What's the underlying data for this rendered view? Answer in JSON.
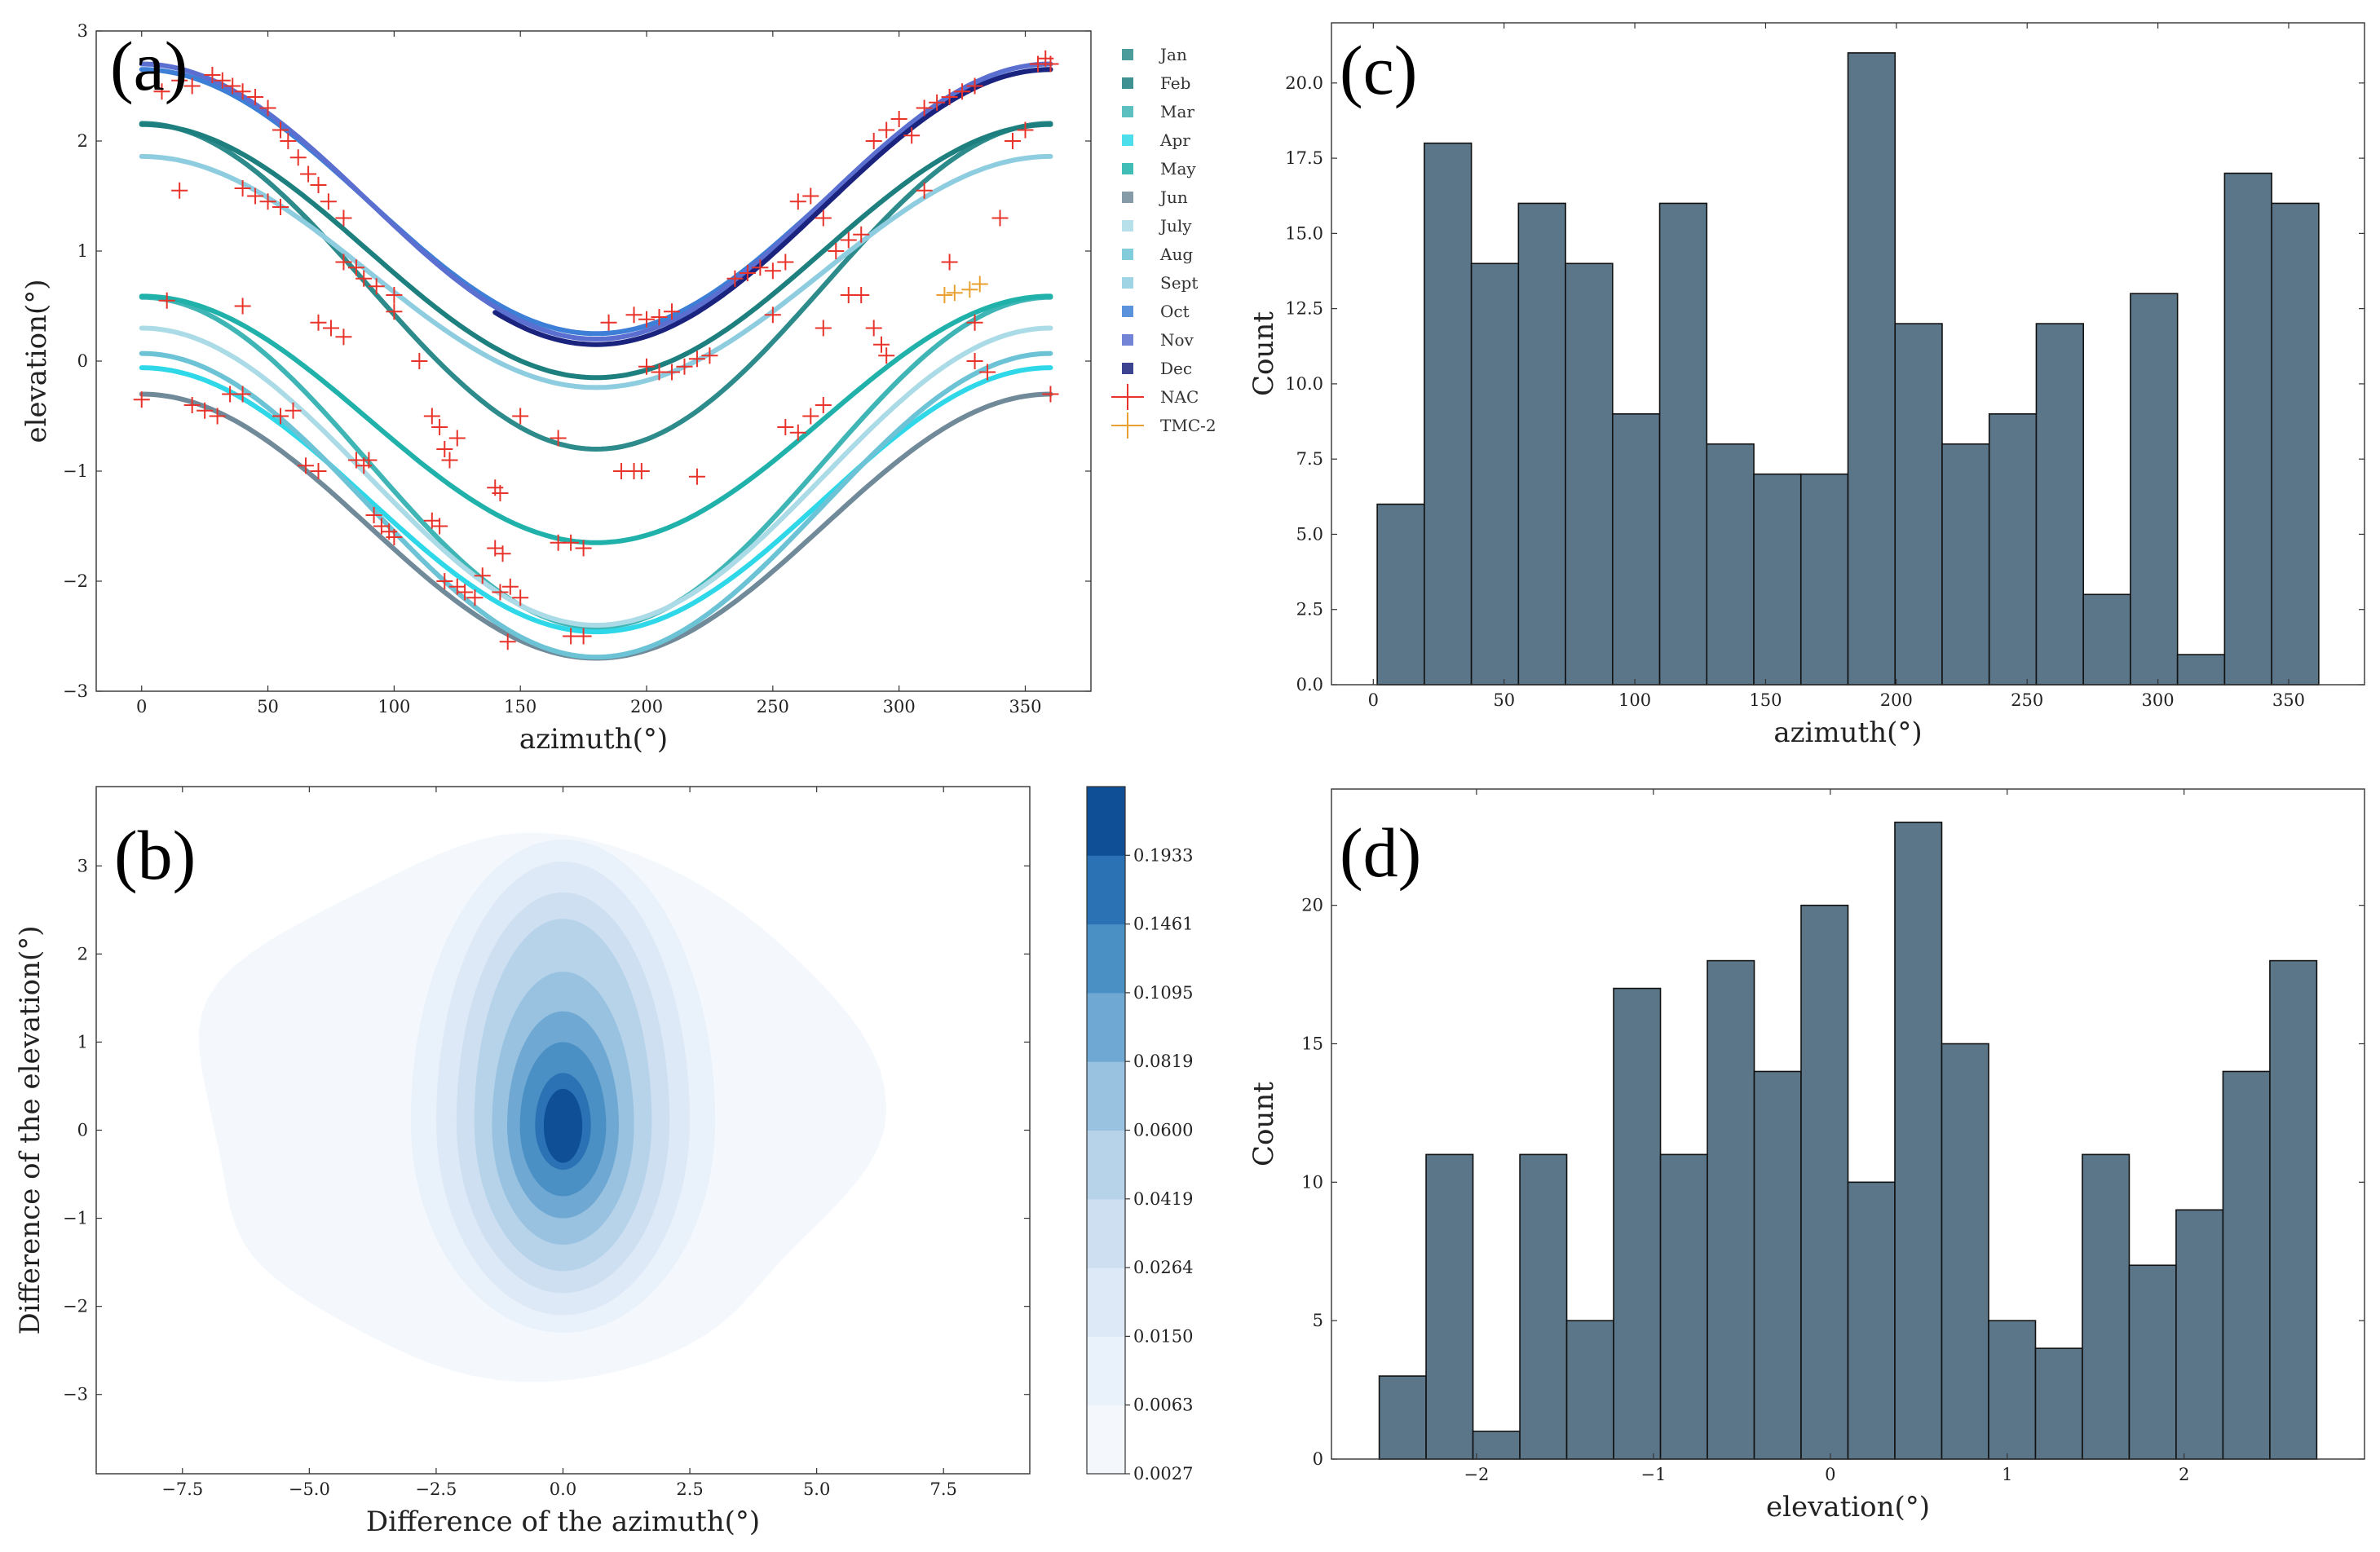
{
  "figure": {
    "panels": [
      "(a)",
      "(b)",
      "(c)",
      "(d)"
    ]
  },
  "chart_data": [
    {
      "id": "a",
      "type": "scatter",
      "panel_label": "(a)",
      "xlabel": "azimuth(°)",
      "ylabel": "elevation(°)",
      "xlim": [
        -18,
        376
      ],
      "ylim": [
        -3,
        3
      ],
      "xticks": [
        0,
        50,
        100,
        150,
        200,
        250,
        300,
        350
      ],
      "yticks": [
        -3,
        -2,
        -1,
        0,
        1,
        2,
        3
      ],
      "ytick_labels": [
        "−3",
        "−2",
        "−1",
        "0",
        "1",
        "2",
        "3"
      ],
      "curves": [
        {
          "name": "Jan",
          "color": "#2e8b8b",
          "model": "A*cos(az)+C",
          "A": 1.48,
          "C": 0.68,
          "x_range": [
            0,
            360
          ]
        },
        {
          "name": "Feb",
          "color": "#1e7f7f",
          "model": "A*cos(az)+C",
          "A": 1.15,
          "C": 1.0,
          "x_range": [
            0,
            360
          ]
        },
        {
          "name": "Mar",
          "color": "#3fb5b5",
          "model": "A*cos(az)+C",
          "A": 1.5,
          "C": -0.92,
          "x_range": [
            0,
            360
          ]
        },
        {
          "name": "Apr",
          "color": "#2ed8e8",
          "model": "A*cos(az)+C",
          "A": 1.2,
          "C": -1.26,
          "x_range": [
            0,
            360
          ]
        },
        {
          "name": "May",
          "color": "#20b2aa",
          "model": "A*cos(az)+C",
          "A": 1.12,
          "C": -0.53,
          "x_range": [
            0,
            360
          ]
        },
        {
          "name": "Jun",
          "color": "#708a99",
          "model": "A*cos(az)+C",
          "A": 1.2,
          "C": -1.5,
          "x_range": [
            0,
            360
          ]
        },
        {
          "name": "July",
          "color": "#aadbe6",
          "model": "A*cos(az)+C",
          "A": 1.35,
          "C": -1.05,
          "x_range": [
            0,
            360
          ]
        },
        {
          "name": "Aug",
          "color": "#6cc3d5",
          "model": "A*cos(az)+C",
          "A": 1.38,
          "C": -1.31,
          "x_range": [
            0,
            360
          ]
        },
        {
          "name": "Sept",
          "color": "#8ecde0",
          "model": "A*cos(az)+C",
          "A": 1.05,
          "C": 0.81,
          "x_range": [
            0,
            360
          ]
        },
        {
          "name": "Oct",
          "color": "#3d7fd6",
          "model": "A*cos(az)+C",
          "A": 1.2,
          "C": 1.45,
          "x_range": [
            0,
            360
          ]
        },
        {
          "name": "Nov",
          "color": "#5a6fd0",
          "model": "A*cos(az)+C",
          "A": 1.25,
          "C": 1.45,
          "x_range": [
            0,
            360
          ]
        },
        {
          "name": "Dec",
          "color": "#1a237e",
          "model": "A*cos(az)+C",
          "A": 1.25,
          "C": 1.4,
          "x_range": [
            140,
            360
          ]
        }
      ],
      "legend": [
        "Jan",
        "Feb",
        "Mar",
        "Apr",
        "May",
        "Jun",
        "July",
        "Aug",
        "Sept",
        "Oct",
        "Nov",
        "Dec",
        "NAC",
        "TMC-2"
      ],
      "series": [
        {
          "name": "NAC",
          "marker": "+",
          "color": "#e8332a",
          "points": [
            [
              0,
              -0.35
            ],
            [
              8,
              2.45
            ],
            [
              15,
              2.55
            ],
            [
              20,
              2.5
            ],
            [
              28,
              2.6
            ],
            [
              32,
              2.55
            ],
            [
              36,
              2.5
            ],
            [
              40,
              2.45
            ],
            [
              45,
              2.4
            ],
            [
              50,
              2.3
            ],
            [
              55,
              2.1
            ],
            [
              58,
              2.0
            ],
            [
              62,
              1.85
            ],
            [
              66,
              1.7
            ],
            [
              70,
              1.6
            ],
            [
              74,
              1.45
            ],
            [
              80,
              1.3
            ],
            [
              15,
              1.55
            ],
            [
              40,
              1.57
            ],
            [
              45,
              1.5
            ],
            [
              50,
              1.45
            ],
            [
              55,
              1.4
            ],
            [
              10,
              0.55
            ],
            [
              40,
              0.5
            ],
            [
              70,
              0.35
            ],
            [
              75,
              0.3
            ],
            [
              80,
              0.22
            ],
            [
              80,
              0.9
            ],
            [
              85,
              0.85
            ],
            [
              88,
              0.75
            ],
            [
              93,
              0.68
            ],
            [
              100,
              0.6
            ],
            [
              100,
              0.45
            ],
            [
              20,
              -0.4
            ],
            [
              25,
              -0.45
            ],
            [
              30,
              -0.5
            ],
            [
              35,
              -0.3
            ],
            [
              40,
              -0.3
            ],
            [
              55,
              -0.5
            ],
            [
              60,
              -0.45
            ],
            [
              65,
              -0.95
            ],
            [
              70,
              -1.0
            ],
            [
              85,
              -0.9
            ],
            [
              88,
              -0.95
            ],
            [
              90,
              -0.9
            ],
            [
              92,
              -1.4
            ],
            [
              95,
              -1.5
            ],
            [
              98,
              -1.55
            ],
            [
              100,
              -1.6
            ],
            [
              110,
              0.0
            ],
            [
              115,
              -0.5
            ],
            [
              118,
              -0.6
            ],
            [
              120,
              -0.8
            ],
            [
              122,
              -0.9
            ],
            [
              125,
              -0.7
            ],
            [
              115,
              -1.45
            ],
            [
              118,
              -1.5
            ],
            [
              120,
              -2.0
            ],
            [
              125,
              -2.05
            ],
            [
              128,
              -2.1
            ],
            [
              132,
              -2.15
            ],
            [
              135,
              -1.95
            ],
            [
              140,
              -1.15
            ],
            [
              142,
              -1.2
            ],
            [
              140,
              -1.7
            ],
            [
              143,
              -1.75
            ],
            [
              142,
              -2.1
            ],
            [
              146,
              -2.05
            ],
            [
              150,
              -2.15
            ],
            [
              145,
              -2.55
            ],
            [
              150,
              -0.5
            ],
            [
              165,
              -0.7
            ],
            [
              165,
              -1.65
            ],
            [
              170,
              -1.65
            ],
            [
              175,
              -1.7
            ],
            [
              170,
              -2.5
            ],
            [
              175,
              -2.5
            ],
            [
              185,
              0.35
            ],
            [
              190,
              -1.0
            ],
            [
              195,
              -1.0
            ],
            [
              198,
              -1.0
            ],
            [
              195,
              0.42
            ],
            [
              200,
              0.38
            ],
            [
              205,
              0.4
            ],
            [
              210,
              0.45
            ],
            [
              200,
              -0.05
            ],
            [
              205,
              -0.1
            ],
            [
              210,
              -0.1
            ],
            [
              215,
              -0.05
            ],
            [
              220,
              0.02
            ],
            [
              225,
              0.05
            ],
            [
              220,
              -1.05
            ],
            [
              235,
              0.75
            ],
            [
              240,
              0.8
            ],
            [
              245,
              0.85
            ],
            [
              250,
              0.82
            ],
            [
              255,
              0.9
            ],
            [
              250,
              0.42
            ],
            [
              255,
              -0.6
            ],
            [
              260,
              -0.65
            ],
            [
              265,
              -0.5
            ],
            [
              270,
              -0.4
            ],
            [
              270,
              0.3
            ],
            [
              260,
              1.45
            ],
            [
              265,
              1.5
            ],
            [
              270,
              1.3
            ],
            [
              275,
              1.0
            ],
            [
              280,
              1.1
            ],
            [
              285,
              1.15
            ],
            [
              280,
              0.6
            ],
            [
              285,
              0.6
            ],
            [
              290,
              0.3
            ],
            [
              293,
              0.15
            ],
            [
              295,
              0.05
            ],
            [
              290,
              2.0
            ],
            [
              295,
              2.1
            ],
            [
              300,
              2.2
            ],
            [
              305,
              2.05
            ],
            [
              310,
              2.3
            ],
            [
              315,
              2.35
            ],
            [
              320,
              2.4
            ],
            [
              325,
              2.45
            ],
            [
              330,
              2.5
            ],
            [
              310,
              1.55
            ],
            [
              320,
              0.9
            ],
            [
              330,
              0.35
            ],
            [
              330,
              0.0
            ],
            [
              335,
              -0.1
            ],
            [
              340,
              1.3
            ],
            [
              345,
              2.0
            ],
            [
              350,
              2.1
            ],
            [
              355,
              2.7
            ],
            [
              358,
              2.75
            ],
            [
              360,
              2.7
            ],
            [
              360,
              -0.3
            ]
          ]
        },
        {
          "name": "TMC-2",
          "marker": "+",
          "color": "#e8a030",
          "points": [
            [
              318,
              0.6
            ],
            [
              322,
              0.62
            ],
            [
              328,
              0.65
            ],
            [
              332,
              0.7
            ]
          ]
        }
      ]
    },
    {
      "id": "b",
      "type": "heatmap",
      "subtype": "kde-contour",
      "panel_label": "(b)",
      "xlabel": "Difference of the azimuth(°)",
      "ylabel": "Difference of the elevation(°)",
      "xlim": [
        -9.2,
        9.2
      ],
      "ylim": [
        -3.9,
        3.9
      ],
      "xticks": [
        -7.5,
        -5.0,
        -2.5,
        0.0,
        2.5,
        5.0,
        7.5
      ],
      "xtick_labels": [
        "−7.5",
        "−5.0",
        "−2.5",
        "0.0",
        "2.5",
        "5.0",
        "7.5"
      ],
      "yticks": [
        -3,
        -2,
        -1,
        0,
        1,
        2,
        3
      ],
      "ytick_labels": [
        "−3",
        "−2",
        "−1",
        "0",
        "1",
        "2",
        "3"
      ],
      "colorbar_levels": [
        0.0027,
        0.0063,
        0.015,
        0.0264,
        0.0419,
        0.06,
        0.0819,
        0.1095,
        0.1461,
        0.1933
      ],
      "colorbar_labels": [
        "0.0027",
        "0.0063",
        "0.0150",
        "0.0264",
        "0.0419",
        "0.0600",
        "0.0819",
        "0.1095",
        "0.1461",
        "0.1933"
      ],
      "colorbar_colors": [
        "#f4f8fd",
        "#e9f1fa",
        "#dde9f6",
        "#cddff1",
        "#b7d3ea",
        "#98c2e0",
        "#6fa9d3",
        "#4b90c5",
        "#2a72b3",
        "#0f4f96"
      ],
      "contours": [
        {
          "level": 0.0027,
          "cx": -0.6,
          "cy": 0.0,
          "rx": 6.6,
          "ry_up": 3.25,
          "ry_down": 2.75
        },
        {
          "level": 0.0063,
          "cx": 0.0,
          "cy": 0.1,
          "rx": 3.0,
          "ry_up": 3.2,
          "ry_down": 2.4
        },
        {
          "level": 0.015,
          "cx": 0.0,
          "cy": 0.1,
          "rx": 2.5,
          "ry_up": 2.95,
          "ry_down": 2.2
        },
        {
          "level": 0.0264,
          "cx": 0.0,
          "cy": 0.1,
          "rx": 2.1,
          "ry_up": 2.6,
          "ry_down": 1.95
        },
        {
          "level": 0.0419,
          "cx": 0.0,
          "cy": 0.1,
          "rx": 1.75,
          "ry_up": 2.3,
          "ry_down": 1.7
        },
        {
          "level": 0.06,
          "cx": 0.0,
          "cy": 0.05,
          "rx": 1.4,
          "ry_up": 1.75,
          "ry_down": 1.35
        },
        {
          "level": 0.0819,
          "cx": 0.0,
          "cy": 0.05,
          "rx": 1.1,
          "ry_up": 1.3,
          "ry_down": 1.05
        },
        {
          "level": 0.1095,
          "cx": 0.0,
          "cy": 0.05,
          "rx": 0.85,
          "ry_up": 0.95,
          "ry_down": 0.8
        },
        {
          "level": 0.1461,
          "cx": 0.0,
          "cy": 0.05,
          "rx": 0.55,
          "ry_up": 0.6,
          "ry_down": 0.5
        }
      ]
    },
    {
      "id": "c",
      "type": "bar",
      "subtype": "histogram",
      "panel_label": "(c)",
      "xlabel": "azimuth(°)",
      "ylabel": "Count",
      "bar_color": "#5b7689",
      "bin_edges": [
        1.5,
        19.5,
        37.5,
        55.5,
        73.5,
        91.5,
        109.5,
        127.5,
        145.5,
        163.5,
        181.5,
        199.5,
        217.5,
        235.5,
        253.5,
        271.5,
        289.5,
        307.5,
        325.5,
        343.5,
        361.5
      ],
      "values": [
        6,
        18,
        14,
        16,
        14,
        9,
        16,
        8,
        7,
        7,
        21,
        12,
        8,
        9,
        12,
        3,
        13,
        1,
        17,
        16
      ],
      "xlim": [
        -16,
        379
      ],
      "ylim": [
        0,
        22
      ],
      "xticks": [
        0,
        50,
        100,
        150,
        200,
        250,
        300,
        350
      ],
      "yticks": [
        0,
        2.5,
        5,
        7.5,
        10,
        12.5,
        15,
        17.5,
        20
      ],
      "ytick_labels": [
        "0.0",
        "2.5",
        "5.0",
        "7.5",
        "10.0",
        "12.5",
        "15.0",
        "17.5",
        "20.0"
      ]
    },
    {
      "id": "d",
      "type": "bar",
      "subtype": "histogram",
      "panel_label": "(d)",
      "xlabel": "elevation(°)",
      "ylabel": "Count",
      "bar_color": "#5b7689",
      "bin_edges": [
        -2.55,
        -2.285,
        -2.02,
        -1.755,
        -1.49,
        -1.225,
        -0.96,
        -0.695,
        -0.43,
        -0.165,
        0.1,
        0.365,
        0.63,
        0.895,
        1.16,
        1.425,
        1.69,
        1.955,
        2.22,
        2.485,
        2.75
      ],
      "values": [
        3,
        11,
        1,
        11,
        5,
        17,
        11,
        18,
        14,
        20,
        10,
        23,
        15,
        5,
        4,
        11,
        7,
        9,
        14,
        18
      ],
      "xlim": [
        -2.82,
        3.02
      ],
      "ylim": [
        0,
        24.2
      ],
      "xticks": [
        -2,
        -1,
        0,
        1,
        2
      ],
      "xtick_labels": [
        "−2",
        "−1",
        "0",
        "1",
        "2"
      ],
      "yticks": [
        0,
        5,
        10,
        15,
        20
      ],
      "ytick_labels": [
        "0",
        "5",
        "10",
        "15",
        "20"
      ]
    }
  ]
}
